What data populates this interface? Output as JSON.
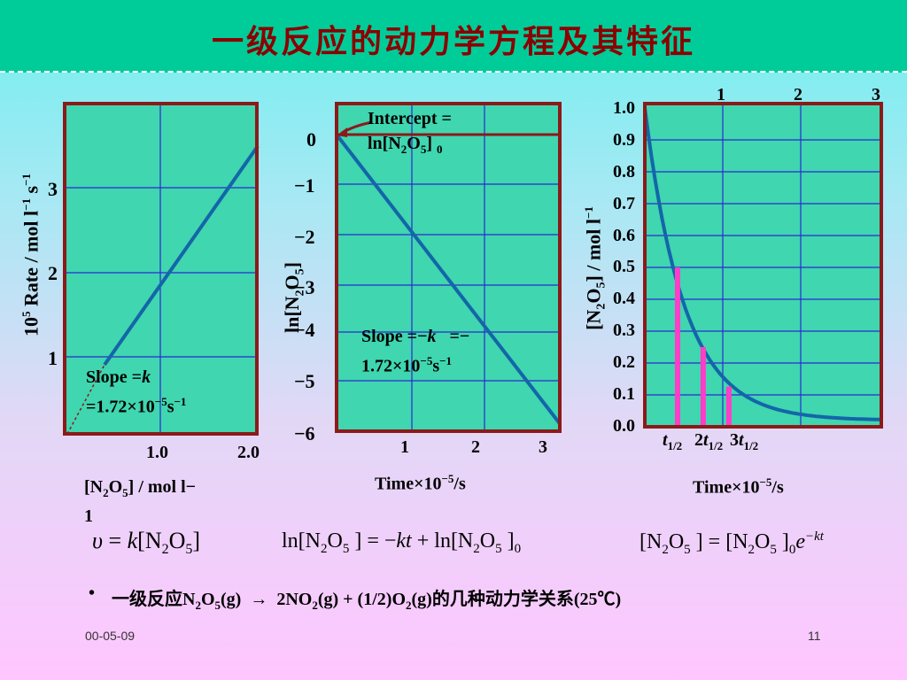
{
  "title": "一级反应的动力学方程及其特征",
  "charts": [
    {
      "title": "",
      "xlabel": "[N2O5] / mol l−1",
      "ylabel": "10^5 Rate / mol l−1 s−1",
      "x_ticks": [
        "1.0",
        "2.0"
      ],
      "y_ticks": [
        "1",
        "2",
        "3"
      ],
      "annotation": "Slope =k =1.72×10−5s−1"
    },
    {
      "title": "",
      "xlabel": "Time×10−5/s",
      "ylabel": "ln[N2O5]",
      "x_ticks": [
        "1",
        "2",
        "3"
      ],
      "y_ticks": [
        "0",
        "−1",
        "−2",
        "−3",
        "−4",
        "−5",
        "−6"
      ],
      "intercept_label": "Intercept = ln[N2O5] 0",
      "annotation": "Slope =−k =−1.72×10−5s−1"
    },
    {
      "title": "",
      "xlabel": "Time×10−5/s",
      "ylabel": "[N2O5] / mol l−1",
      "x_top_ticks": [
        "1",
        "2",
        "3"
      ],
      "y_ticks": [
        "1.0",
        "0.9",
        "0.8",
        "0.7",
        "0.6",
        "0.5",
        "0.4",
        "0.3",
        "0.2",
        "0.1",
        "0.0"
      ],
      "halflife_labels": [
        "t1/2",
        "2t1/2",
        "3t1/2"
      ]
    }
  ],
  "chart_data": [
    {
      "type": "line",
      "xlim": [
        0,
        2.0
      ],
      "ylim": [
        0,
        3.5
      ],
      "x": [
        0.0,
        0.5,
        1.0,
        1.5,
        2.0
      ],
      "y": [
        0.0,
        0.86,
        1.72,
        2.58,
        3.44
      ],
      "grid": true
    },
    {
      "type": "line",
      "xlim": [
        0,
        3.3
      ],
      "ylim": [
        -6,
        0.5
      ],
      "x": [
        0.0,
        1.0,
        2.0,
        3.0,
        3.3
      ],
      "y": [
        0.0,
        -1.72,
        -3.44,
        -5.16,
        -5.68
      ],
      "grid": true
    },
    {
      "type": "line",
      "xlim": [
        0,
        3.45
      ],
      "ylim": [
        0,
        1.0
      ],
      "x": [
        0.0,
        0.4,
        0.8,
        1.2,
        1.6,
        2.0,
        2.4,
        2.8,
        3.2,
        3.45
      ],
      "y": [
        1.0,
        0.5,
        0.25,
        0.126,
        0.07,
        0.045,
        0.033,
        0.026,
        0.022,
        0.02
      ],
      "halflife_x": [
        0.4,
        0.8,
        1.2
      ],
      "halflife_y": [
        0.5,
        0.25,
        0.126
      ],
      "grid": true
    }
  ],
  "equations": {
    "rate_law": "υ = k[N2O5]",
    "integrated_log": "ln[N2O5] = −kt + ln[N2O5]0",
    "exponential": "[N2O5] = [N2O5]0 e−kt"
  },
  "bullet": "一级反应N2O5(g) → 2NO2(g) + (1/2)O2(g)的几种动力学关系(25℃)",
  "footer": {
    "date": "00-05-09",
    "page": "11"
  },
  "colors": {
    "plot_bg": "#3fd6b0",
    "frame": "#8b1a1a",
    "grid": "#2a2ad0",
    "curve": "#1466a8",
    "halflife": "#ff3dc8",
    "title": "#8b0000"
  }
}
